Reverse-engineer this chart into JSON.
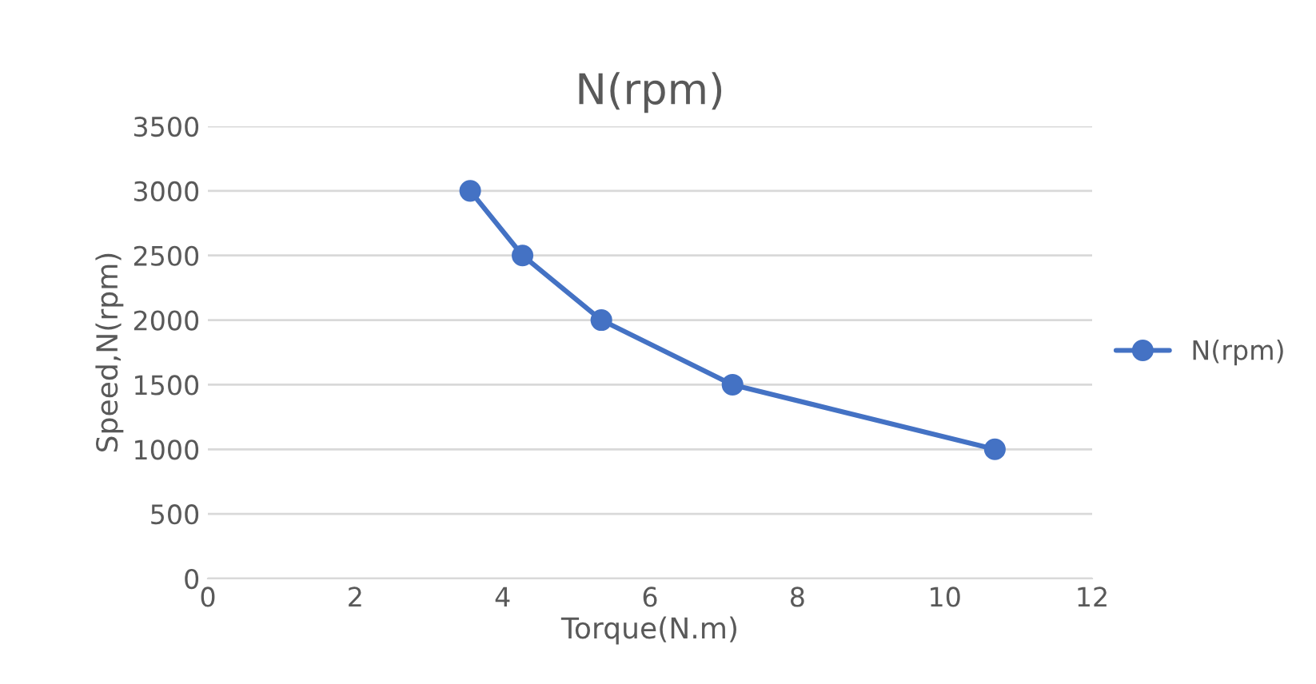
{
  "chart_data": {
    "type": "line",
    "title": "N(rpm)",
    "xlabel": "Torque(N.m)",
    "ylabel": "Speed,N(rpm)",
    "x": [
      3.56,
      4.27,
      5.34,
      7.12,
      10.68
    ],
    "series": [
      {
        "name": "N(rpm)",
        "color": "#4472c4",
        "values": [
          3000,
          2500,
          2000,
          1500,
          1000
        ]
      }
    ],
    "xlim": [
      0,
      12
    ],
    "xticks": [
      0,
      2,
      4,
      6,
      8,
      10,
      12
    ],
    "ylim": [
      0,
      3500
    ],
    "yticks": [
      0,
      500,
      1000,
      1500,
      2000,
      2500,
      3000,
      3500
    ],
    "grid": "y",
    "legend": "right",
    "marker": "circle",
    "line_style": "solid"
  }
}
